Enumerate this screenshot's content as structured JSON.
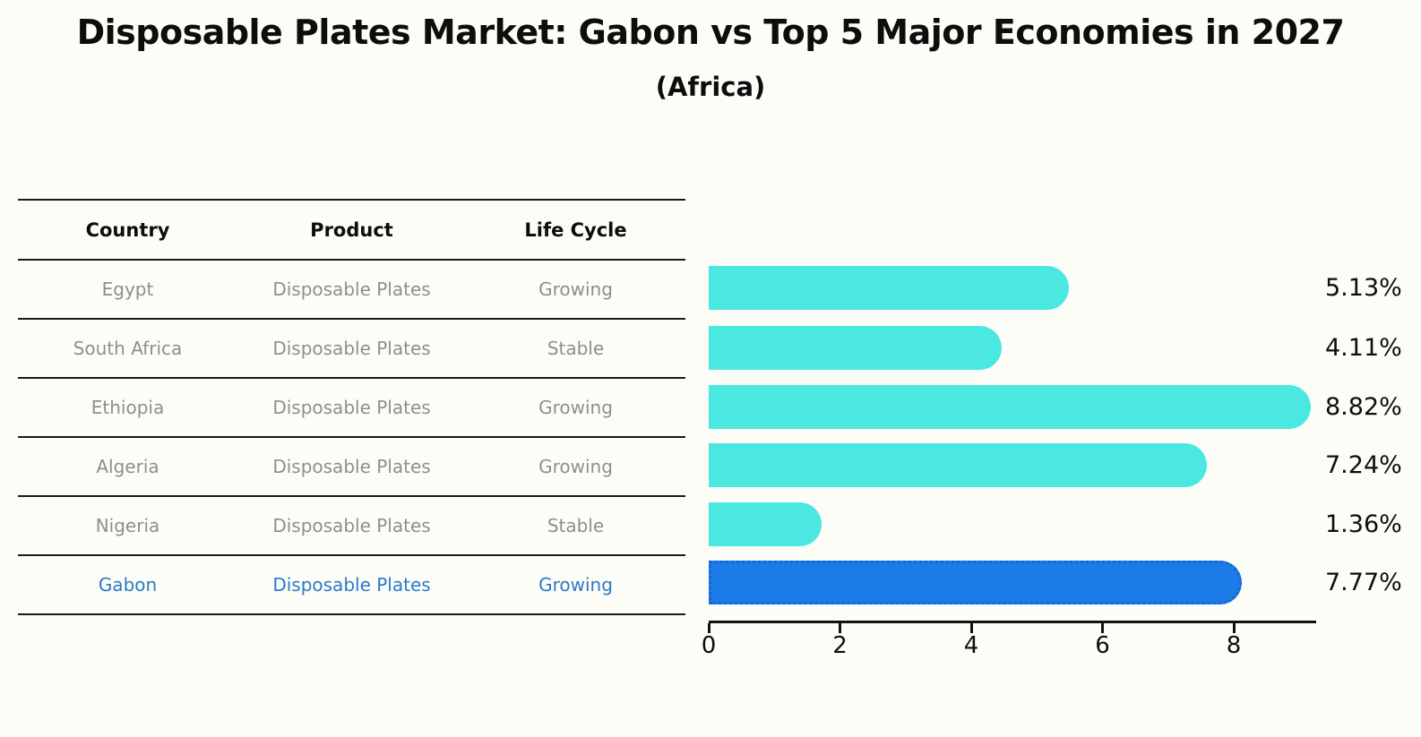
{
  "title": "Disposable Plates Market: Gabon vs Top 5 Major Economies in 2027",
  "subtitle": "(Africa)",
  "table": {
    "headers": [
      "Country",
      "Product",
      "Life Cycle"
    ],
    "rows": [
      {
        "country": "Egypt",
        "product": "Disposable Plates",
        "life_cycle": "Growing",
        "highlighted": false
      },
      {
        "country": "South Africa",
        "product": "Disposable Plates",
        "life_cycle": "Stable",
        "highlighted": false
      },
      {
        "country": "Ethiopia",
        "product": "Disposable Plates",
        "life_cycle": "Growing",
        "highlighted": false
      },
      {
        "country": "Algeria",
        "product": "Disposable Plates",
        "life_cycle": "Growing",
        "highlighted": false
      },
      {
        "country": "Nigeria",
        "product": "Disposable Plates",
        "life_cycle": "Stable",
        "highlighted": false
      },
      {
        "country": "Gabon",
        "product": "Disposable Plates",
        "life_cycle": "Growing",
        "highlighted": true
      }
    ]
  },
  "chart_data": {
    "type": "bar",
    "orientation": "horizontal",
    "categories": [
      "Egypt",
      "South Africa",
      "Ethiopia",
      "Algeria",
      "Nigeria",
      "Gabon"
    ],
    "values": [
      5.13,
      4.11,
      8.82,
      7.24,
      1.36,
      7.77
    ],
    "value_labels": [
      "5.13%",
      "4.11%",
      "8.82%",
      "7.24%",
      "1.36%",
      "7.77%"
    ],
    "unit": "%",
    "xlim": [
      0,
      9.25
    ],
    "xticks": [
      0,
      2,
      4,
      6,
      8
    ],
    "highlight_index": 5,
    "bar_color": "#4ae8e1",
    "highlight_color": "#1b7ce8",
    "highlight_edge_color": "#1566d2",
    "grid": false,
    "legend": false
  },
  "colors": {
    "background": "#fdfdf8",
    "table_line": "#1a1a1a",
    "muted_text": "#8e8e8e",
    "highlight_text": "#2a7ac8"
  }
}
